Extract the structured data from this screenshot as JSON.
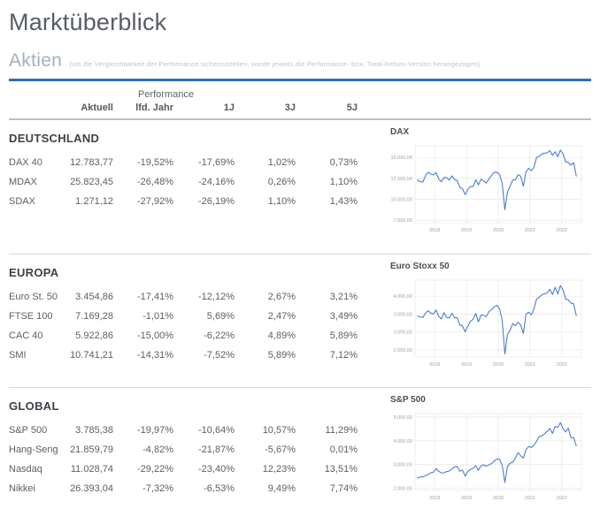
{
  "page": {
    "title": "Marktüberblick"
  },
  "section": {
    "title": "Aktien",
    "subtitle": "(um die Vergleichbarkeit der Performance sicherzustellen, wurde jeweils die Performance- bzw. Total-Return-Version herangezogen)"
  },
  "colors": {
    "accent_rule": "#2c70ad",
    "chart_line": "#4d7ec9",
    "grid_line": "#e7e7e7",
    "axis_text": "#9aa0a8"
  },
  "table": {
    "header_group": "Performance",
    "columns": [
      "Aktuell",
      "lfd. Jahr",
      "1J",
      "3J",
      "5J"
    ],
    "groups": [
      {
        "name": "DEUTSCHLAND",
        "rows": [
          {
            "label": "DAX 40",
            "values": [
              "12.783,77",
              "-19,52%",
              "-17,69%",
              "1,02%",
              "0,73%"
            ]
          },
          {
            "label": "MDAX",
            "values": [
              "25.823,45",
              "-26,48%",
              "-24,16%",
              "0,26%",
              "1,10%"
            ]
          },
          {
            "label": "SDAX",
            "values": [
              "1.271,12",
              "-27,92%",
              "-26,19%",
              "1,10%",
              "1,43%"
            ]
          }
        ]
      },
      {
        "name": "EUROPA",
        "rows": [
          {
            "label": "Euro St. 50",
            "values": [
              "3.454,86",
              "-17,41%",
              "-12,12%",
              "2,67%",
              "3,21%"
            ]
          },
          {
            "label": "FTSE 100",
            "values": [
              "7.169,28",
              "-1,01%",
              "5,69%",
              "2,47%",
              "3,49%"
            ]
          },
          {
            "label": "CAC 40",
            "values": [
              "5.922,86",
              "-15,00%",
              "-6,22%",
              "4,89%",
              "5,89%"
            ]
          },
          {
            "label": "SMI",
            "values": [
              "10.741,21",
              "-14,31%",
              "-7,52%",
              "5,89%",
              "7,12%"
            ]
          }
        ]
      },
      {
        "name": "GLOBAL",
        "rows": [
          {
            "label": "S&P 500",
            "values": [
              "3.785,38",
              "-19,97%",
              "-10,64%",
              "10,57%",
              "11,29%"
            ]
          },
          {
            "label": "Hang-Seng",
            "values": [
              "21.859,79",
              "-4,82%",
              "-21,87%",
              "-5,67%",
              "0,01%"
            ]
          },
          {
            "label": "Nasdaq",
            "values": [
              "11.028,74",
              "-29,22%",
              "-23,40%",
              "12,23%",
              "13,51%"
            ]
          },
          {
            "label": "Nikkei",
            "values": [
              "26.393,04",
              "-7,32%",
              "-6,53%",
              "9,49%",
              "7,74%"
            ]
          }
        ]
      }
    ]
  },
  "chart_data": [
    {
      "type": "line",
      "title": "DAX",
      "xlabel": "",
      "ylabel": "",
      "grid": true,
      "legend_position": "none",
      "x_start": 2017.458,
      "x_step": 0.08333,
      "xlim": [
        2017.38,
        2022.62
      ],
      "ylim": [
        7200,
        16400
      ],
      "yticks": [
        7500,
        10000,
        12500,
        15000
      ],
      "ytick_labels": [
        "7.500,00",
        "10.000,00",
        "12.500,00",
        "15.000,00"
      ],
      "xticks": [
        2018,
        2019,
        2020,
        2021,
        2022
      ],
      "xtick_labels": [
        "2018",
        "2019",
        "2020",
        "2021",
        "2022"
      ],
      "values": [
        12325,
        12118,
        12056,
        12829,
        13230,
        13024,
        12918,
        13190,
        12436,
        12097,
        12612,
        12604,
        12306,
        12806,
        12364,
        12247,
        11447,
        11257,
        10559,
        11173,
        11516,
        11526,
        12344,
        11727,
        12399,
        12189,
        11939,
        12428,
        12867,
        13236,
        13249,
        12982,
        11890,
        8742,
        10862,
        11587,
        12311,
        12313,
        12945,
        12761,
        11556,
        13291,
        13719,
        13433,
        13786,
        15008,
        15136,
        15421,
        15531,
        15544,
        15835,
        15261,
        15689,
        15100,
        15885,
        15471,
        14461,
        14415,
        14098,
        14388,
        12784
      ]
    },
    {
      "type": "line",
      "title": "Euro Stoxx 50",
      "xlabel": "",
      "ylabel": "",
      "grid": true,
      "legend_position": "none",
      "x_start": 2017.458,
      "x_step": 0.08333,
      "xlim": [
        2017.38,
        2022.62
      ],
      "ylim": [
        2300,
        4450
      ],
      "yticks": [
        2500,
        3000,
        3500,
        4000
      ],
      "ytick_labels": [
        "2.500,00",
        "3.000,00",
        "3.500,00",
        "4.000,00"
      ],
      "xticks": [
        2018,
        2019,
        2020,
        2021,
        2022
      ],
      "xtick_labels": [
        "2018",
        "2019",
        "2020",
        "2021",
        "2022"
      ],
      "values": [
        3442,
        3421,
        3405,
        3527,
        3594,
        3528,
        3504,
        3609,
        3439,
        3362,
        3537,
        3407,
        3396,
        3525,
        3393,
        3399,
        3198,
        3173,
        3001,
        3159,
        3298,
        3352,
        3515,
        3280,
        3474,
        3467,
        3427,
        3569,
        3624,
        3704,
        3745,
        3641,
        3329,
        2386,
        2928,
        3050,
        3234,
        3174,
        3273,
        3193,
        2958,
        3493,
        3553,
        3481,
        3636,
        3919,
        3974,
        4039,
        4064,
        4089,
        4196,
        4048,
        4251,
        4063,
        4298,
        4175,
        3924,
        3903,
        3803,
        3789,
        3455
      ]
    },
    {
      "type": "line",
      "title": "S&P 500",
      "xlabel": "",
      "ylabel": "",
      "grid": true,
      "legend_position": "none",
      "x_start": 2017.458,
      "x_step": 0.08333,
      "xlim": [
        2017.38,
        2022.62
      ],
      "ylim": [
        1900,
        5150
      ],
      "yticks": [
        2000,
        3000,
        4000,
        5000
      ],
      "ytick_labels": [
        "2.000,00",
        "3.000,00",
        "4.000,00",
        "5.000,00"
      ],
      "xticks": [
        2018,
        2019,
        2020,
        2021,
        2022
      ],
      "xtick_labels": [
        "2018",
        "2019",
        "2020",
        "2021",
        "2022"
      ],
      "values": [
        2423,
        2470,
        2472,
        2519,
        2575,
        2648,
        2674,
        2824,
        2714,
        2641,
        2648,
        2705,
        2718,
        2816,
        2902,
        2914,
        2712,
        2760,
        2507,
        2704,
        2784,
        2834,
        2946,
        2752,
        2942,
        2980,
        2926,
        2977,
        3038,
        3141,
        3231,
        3226,
        2954,
        2237,
        2912,
        3044,
        3100,
        3271,
        3500,
        3363,
        3270,
        3622,
        3756,
        3714,
        3811,
        3973,
        4181,
        4204,
        4298,
        4395,
        4523,
        4308,
        4605,
        4567,
        4766,
        4516,
        4374,
        4530,
        4132,
        4132,
        3785
      ]
    }
  ]
}
